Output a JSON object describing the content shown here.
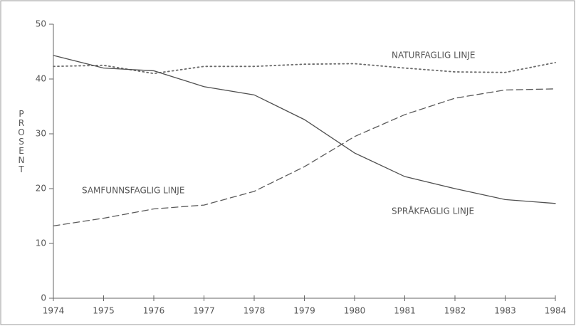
{
  "chart_data": {
    "type": "line",
    "y_label": "PROSENT",
    "x": [
      1974,
      1975,
      1976,
      1977,
      1978,
      1979,
      1980,
      1981,
      1982,
      1983,
      1984
    ],
    "xlim": [
      1974,
      1984
    ],
    "xticks": [
      1974,
      1975,
      1976,
      1977,
      1978,
      1979,
      1980,
      1981,
      1982,
      1983,
      1984
    ],
    "ylim": [
      0,
      50
    ],
    "yticks": [
      0,
      10,
      20,
      30,
      40,
      50
    ],
    "series": [
      {
        "name": "NATURFAGLIG LINJE",
        "color": "#6a6a6a",
        "dash": "dotted",
        "values": [
          42.3,
          42.5,
          41,
          42.3,
          42.3,
          42.7,
          42.8,
          42,
          41.3,
          41.2,
          43
        ]
      },
      {
        "name": "SAMFUNNSFAGLIG LINJE",
        "color": "#5a5a5a",
        "dash": "dashed",
        "values": [
          13.2,
          14.6,
          16.3,
          17,
          19.5,
          24,
          29.5,
          33.5,
          36.5,
          38,
          38.2
        ]
      },
      {
        "name": "SPRÅKFAGLIG LINJE",
        "color": "#505050",
        "dash": "solid",
        "values": [
          44.3,
          42,
          41.5,
          38.6,
          37.1,
          32.6,
          26.5,
          22.2,
          20,
          18,
          17.3
        ]
      }
    ]
  }
}
